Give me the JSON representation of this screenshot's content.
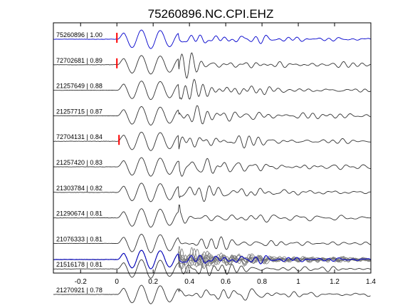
{
  "chart_data": {
    "type": "line",
    "title": "75260896.NC.CPI.EHZ",
    "xlabel": "",
    "ylabel": "",
    "xlim": [
      -0.35,
      1.4
    ],
    "xticks": [
      -0.2,
      0,
      0.2,
      0.4,
      0.6,
      0.8,
      1,
      1.2,
      1.4
    ],
    "xtick_labels": [
      "-0.2",
      "0",
      "0.2",
      "0.4",
      "0.6",
      "0.8",
      "1",
      "1.2",
      "1.4"
    ],
    "grid": false,
    "pick_marker_time": 0.0,
    "pick_marker_color": "#ff0000",
    "template_color": "#0000cc",
    "trace_color": "#333333",
    "stack_color": "#777777",
    "series": [
      {
        "name": "75260896 | 1.00",
        "id": "75260896",
        "cc": 1.0,
        "color": "#0000cc",
        "pick": true
      },
      {
        "name": "72702681 | 0.89",
        "id": "72702681",
        "cc": 0.89,
        "color": "#333333",
        "pick": true
      },
      {
        "name": "21257649 | 0.88",
        "id": "21257649",
        "cc": 0.88,
        "color": "#333333",
        "pick": false
      },
      {
        "name": "21257715 | 0.87",
        "id": "21257715",
        "cc": 0.87,
        "color": "#333333",
        "pick": false
      },
      {
        "name": "72704131 | 0.84",
        "id": "72704131",
        "cc": 0.84,
        "color": "#333333",
        "pick": true
      },
      {
        "name": "21257420 | 0.83",
        "id": "21257420",
        "cc": 0.83,
        "color": "#333333",
        "pick": false
      },
      {
        "name": "21303784 | 0.82",
        "id": "21303784",
        "cc": 0.82,
        "color": "#333333",
        "pick": false
      },
      {
        "name": "21290674 | 0.81",
        "id": "21290674",
        "cc": 0.81,
        "color": "#333333",
        "pick": false
      },
      {
        "name": "21076333 | 0.81",
        "id": "21076333",
        "cc": 0.81,
        "color": "#333333",
        "pick": false
      },
      {
        "name": "21516178 | 0.81",
        "id": "21516178",
        "cc": 0.81,
        "color": "#333333",
        "pick": false
      },
      {
        "name": "21270921 | 0.78",
        "id": "21270921",
        "cc": 0.78,
        "color": "#333333",
        "pick": false
      }
    ],
    "waveform_peaks_t": [
      0.08,
      0.185,
      0.29
    ],
    "waveform_troughs_t": [
      0.03,
      0.135,
      0.24
    ]
  }
}
